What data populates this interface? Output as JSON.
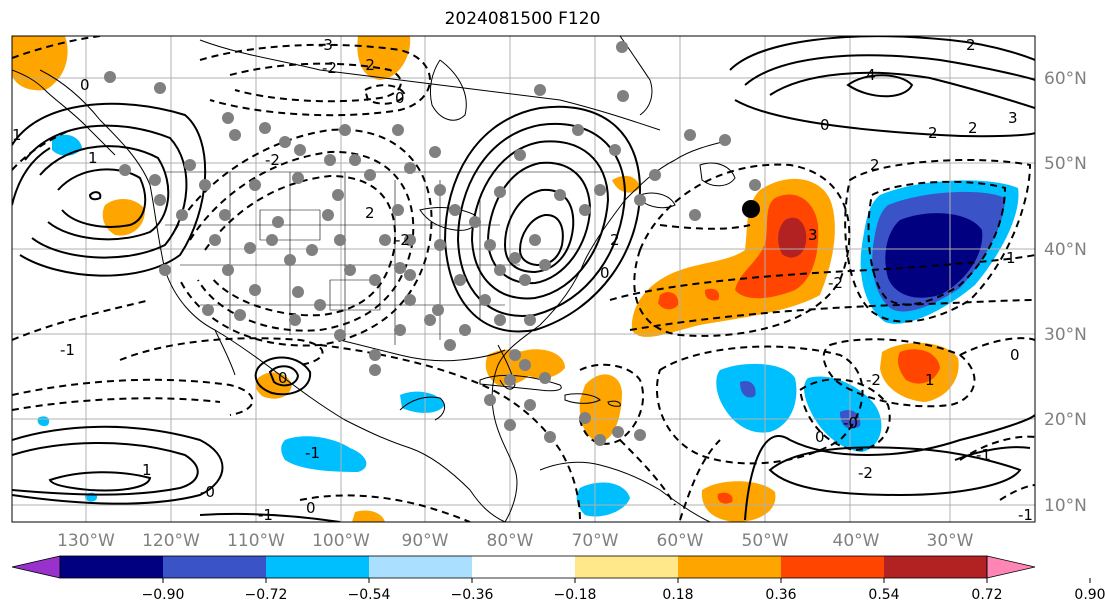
{
  "title": "2024081500 F120",
  "longitude_labels": [
    "130°W",
    "120°W",
    "110°W",
    "100°W",
    "90°W",
    "80°W",
    "70°W",
    "60°W",
    "50°W",
    "40°W",
    "30°W"
  ],
  "latitude_labels": [
    "60°N",
    "50°N",
    "40°N",
    "30°N",
    "20°N",
    "10°N"
  ],
  "colorbar": {
    "tick_labels": [
      "−0.90",
      "−0.72",
      "−0.54",
      "−0.36",
      "−0.18",
      "0.18",
      "0.36",
      "0.54",
      "0.72",
      "0.90"
    ],
    "colors": [
      "#9932cc",
      "#000080",
      "#3a54c8",
      "#00bfff",
      "#aadfff",
      "#ffffff",
      "#ffe88a",
      "#ffa500",
      "#ff4500",
      "#b22222",
      "#ff85b5"
    ]
  },
  "fill_colors": {
    "orange": "#ffa500",
    "red": "#ff4500",
    "darkred": "#b22222",
    "lightblue": "#00bfff",
    "medblue": "#3a54c8",
    "navy": "#000080",
    "purple": "#9932cc"
  },
  "contour_labels": [
    "-3",
    "-2",
    "0",
    "-2",
    "0",
    "1",
    "1",
    "-2",
    "2",
    "-2",
    "0",
    "2",
    "-1",
    "0",
    "-1",
    "0",
    "-1",
    "1",
    "-0",
    "3",
    "4",
    "2",
    "2",
    "3",
    "2",
    "-2",
    "1",
    "0",
    "-2",
    "2",
    "1",
    "-2",
    "-1",
    "-1",
    "0",
    "-0",
    "0"
  ],
  "storm_marker": "current position"
}
